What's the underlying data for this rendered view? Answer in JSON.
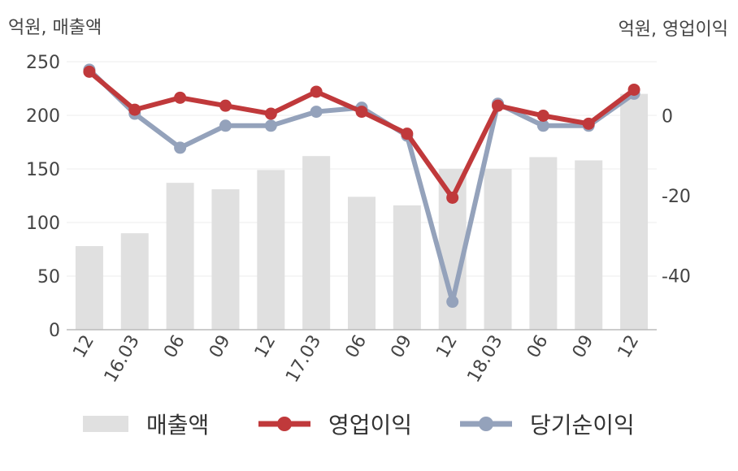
{
  "chart_data": {
    "type": "bar",
    "categories": [
      "12",
      "16.03",
      "06",
      "09",
      "12",
      "17.03",
      "06",
      "09",
      "12",
      "18.03",
      "06",
      "09",
      "12"
    ],
    "left_axis_label": "억원, 매출액",
    "right_axis_label": "억원, 영업이익",
    "left_ylim": [
      0,
      250
    ],
    "left_ticks": [
      "0",
      "50",
      "100",
      "150",
      "200",
      "250"
    ],
    "right_ylim": [
      -53.5,
      13.5
    ],
    "right_ticks": [
      "0",
      "-20",
      "-40"
    ],
    "grid": true,
    "legend_position": "bottom",
    "series": [
      {
        "name": "매출액",
        "type": "bar",
        "axis": "left",
        "color": "#e0e0e0",
        "values": [
          78,
          90,
          137,
          131,
          149,
          162,
          124,
          116,
          150,
          150,
          161,
          158,
          220
        ]
      },
      {
        "name": "영업이익",
        "type": "line",
        "axis": "right",
        "color": "#c0393b",
        "values": [
          11.0,
          1.5,
          4.5,
          2.5,
          0.5,
          6.0,
          1.0,
          -4.5,
          -20.5,
          2.5,
          0.0,
          -2.0,
          6.5
        ]
      },
      {
        "name": "당기순이익",
        "type": "line",
        "axis": "right",
        "color": "#94a2bb",
        "values": [
          11.5,
          0.5,
          -8.0,
          -2.5,
          -2.5,
          1.0,
          2.0,
          -5.0,
          -46.5,
          3.0,
          -2.5,
          -2.5,
          5.5
        ]
      }
    ]
  }
}
